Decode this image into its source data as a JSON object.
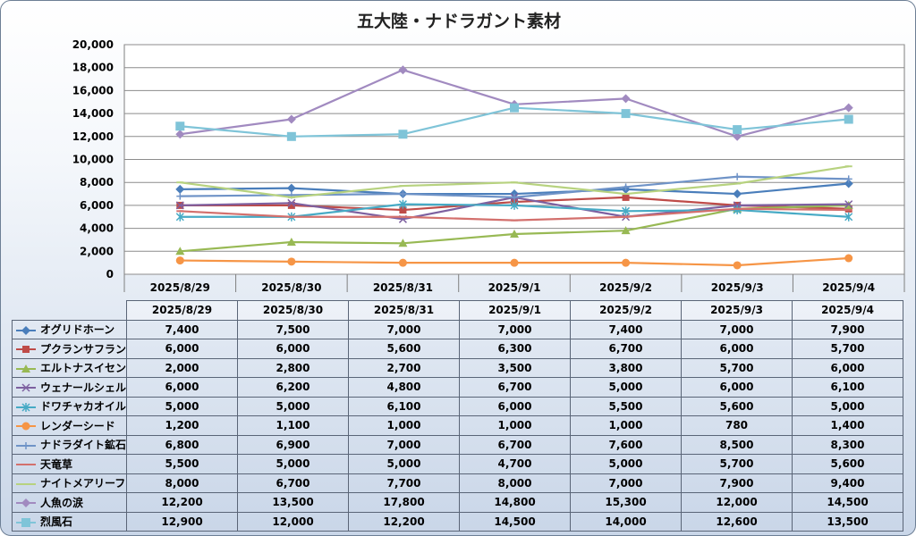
{
  "chart_data": {
    "type": "line",
    "title": "五大陸・ナドラガント素材",
    "categories": [
      "2025/8/29",
      "2025/8/30",
      "2025/8/31",
      "2025/9/1",
      "2025/9/2",
      "2025/9/3",
      "2025/9/4"
    ],
    "ylim": [
      0,
      20000
    ],
    "yticks": [
      "0",
      "2,000",
      "4,000",
      "6,000",
      "8,000",
      "10,000",
      "12,000",
      "14,000",
      "16,000",
      "18,000",
      "20,000"
    ],
    "grid": true,
    "legend": "data-table",
    "series": [
      {
        "name": "オグリドホーン",
        "color": "#4a7ebb",
        "marker": "diamond",
        "values": [
          7400,
          7500,
          7000,
          7000,
          7400,
          7000,
          7900
        ],
        "labels": [
          "7,400",
          "7,500",
          "7,000",
          "7,000",
          "7,400",
          "7,000",
          "7,900"
        ]
      },
      {
        "name": "プクランサフラン",
        "color": "#be4b48",
        "marker": "square",
        "values": [
          6000,
          6000,
          5600,
          6300,
          6700,
          6000,
          5700
        ],
        "labels": [
          "6,000",
          "6,000",
          "5,600",
          "6,300",
          "6,700",
          "6,000",
          "5,700"
        ]
      },
      {
        "name": "エルトナスイセン",
        "color": "#98b954",
        "marker": "triangle",
        "values": [
          2000,
          2800,
          2700,
          3500,
          3800,
          5700,
          6000
        ],
        "labels": [
          "2,000",
          "2,800",
          "2,700",
          "3,500",
          "3,800",
          "5,700",
          "6,000"
        ]
      },
      {
        "name": "ウェナールシェル",
        "color": "#7d60a0",
        "marker": "x",
        "values": [
          6000,
          6200,
          4800,
          6700,
          5000,
          6000,
          6100
        ],
        "labels": [
          "6,000",
          "6,200",
          "4,800",
          "6,700",
          "5,000",
          "6,000",
          "6,100"
        ]
      },
      {
        "name": "ドワチャカオイル",
        "color": "#46aac5",
        "marker": "star",
        "values": [
          5000,
          5000,
          6100,
          6000,
          5500,
          5600,
          5000
        ],
        "labels": [
          "5,000",
          "5,000",
          "6,100",
          "6,000",
          "5,500",
          "5,600",
          "5,000"
        ]
      },
      {
        "name": "レンダーシード",
        "color": "#f69546",
        "marker": "circle",
        "values": [
          1200,
          1100,
          1000,
          1000,
          1000,
          780,
          1400
        ],
        "labels": [
          "1,200",
          "1,100",
          "1,000",
          "1,000",
          "1,000",
          "780",
          "1,400"
        ]
      },
      {
        "name": "ナドラダイト鉱石",
        "color": "#6f93c7",
        "marker": "plus",
        "values": [
          6800,
          6900,
          7000,
          6700,
          7600,
          8500,
          8300
        ],
        "labels": [
          "6,800",
          "6,900",
          "7,000",
          "6,700",
          "7,600",
          "8,500",
          "8,300"
        ]
      },
      {
        "name": "天竜草",
        "color": "#d3706d",
        "marker": "dash",
        "values": [
          5500,
          5000,
          5000,
          4700,
          5000,
          5700,
          5600
        ],
        "labels": [
          "5,500",
          "5,000",
          "5,000",
          "4,700",
          "5,000",
          "5,700",
          "5,600"
        ]
      },
      {
        "name": "ナイトメアリーフ",
        "color": "#b7d27f",
        "marker": "dash",
        "values": [
          8000,
          6700,
          7700,
          8000,
          7000,
          7900,
          9400
        ],
        "labels": [
          "8,000",
          "6,700",
          "7,700",
          "8,000",
          "7,000",
          "7,900",
          "9,400"
        ]
      },
      {
        "name": "人魚の涙",
        "color": "#a18ac0",
        "marker": "diamond",
        "values": [
          12200,
          13500,
          17800,
          14800,
          15300,
          12000,
          14500
        ],
        "labels": [
          "12,200",
          "13,500",
          "17,800",
          "14,800",
          "15,300",
          "12,000",
          "14,500"
        ]
      },
      {
        "name": "烈風石",
        "color": "#7fc4d8",
        "marker": "bigsquare",
        "values": [
          12900,
          12000,
          12200,
          14500,
          14000,
          12600,
          13500
        ],
        "labels": [
          "12,900",
          "12,000",
          "12,200",
          "14,500",
          "14,000",
          "12,600",
          "13,500"
        ]
      }
    ]
  }
}
